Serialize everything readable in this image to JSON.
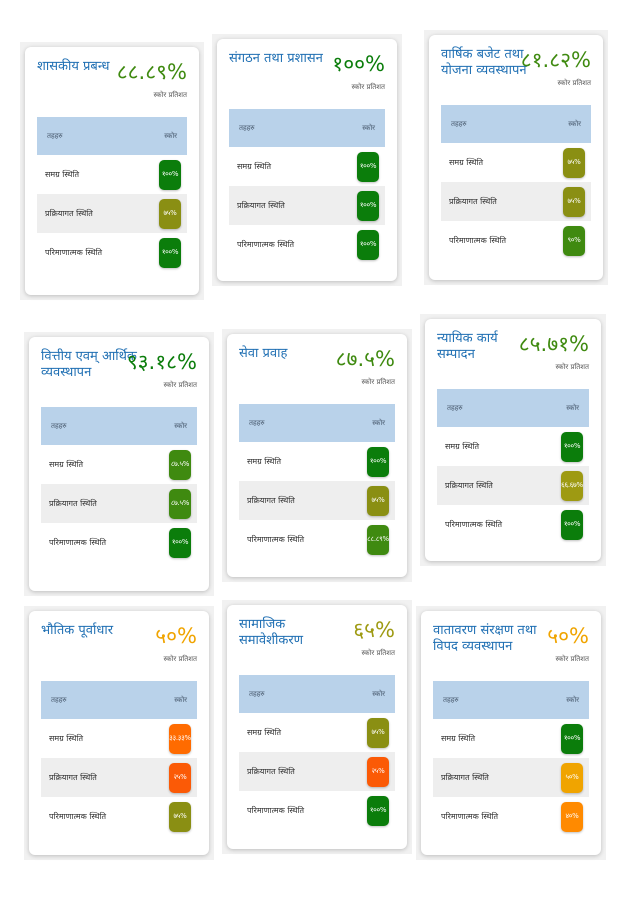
{
  "labels": {
    "score_percent": "स्कोर प्रतिशत",
    "col_area": "तहहरु",
    "col_score": "स्कोर"
  },
  "colors": {
    "good": "#0b7d0b",
    "medium_good": "#3f8a10",
    "olive": "#8a8f13",
    "olive_yellow": "#9e9a12",
    "warning": "#f0a400",
    "alert": "#ff6b00",
    "danger": "#fb5a06",
    "title_blue": "#1f6fb3",
    "table_header": "#b9d2ea"
  },
  "cards": [
    {
      "title": "शासकीय प्रबन्ध",
      "percent": "८८.८९%",
      "percent_color": "#3f8a10",
      "rows": [
        {
          "label": "समग्र स्थिति",
          "value": "१००%",
          "color": "#0b7d0b"
        },
        {
          "label": "प्रक्रियागत स्थिति",
          "value": "७५%",
          "color": "#8a8f13"
        },
        {
          "label": "परिमाणात्मक स्थिति",
          "value": "१००%",
          "color": "#0b7d0b"
        }
      ]
    },
    {
      "title": "संगठन तथा प्रशासन",
      "percent": "१००%",
      "percent_color": "#0b7d0b",
      "rows": [
        {
          "label": "समग्र स्थिति",
          "value": "१००%",
          "color": "#0b7d0b"
        },
        {
          "label": "प्रक्रियागत स्थिति",
          "value": "१००%",
          "color": "#0b7d0b"
        },
        {
          "label": "परिमाणात्मक स्थिति",
          "value": "१००%",
          "color": "#0b7d0b"
        }
      ]
    },
    {
      "title": "वार्षिक बजेट तथा योजना व्यवस्थापन",
      "percent": "८१.८२%",
      "percent_color": "#3f8a10",
      "rows": [
        {
          "label": "समग्र स्थिति",
          "value": "७५%",
          "color": "#8a8f13"
        },
        {
          "label": "प्रक्रियागत स्थिति",
          "value": "७५%",
          "color": "#8a8f13"
        },
        {
          "label": "परिमाणात्मक स्थिति",
          "value": "९०%",
          "color": "#3f8a10"
        }
      ]
    },
    {
      "title": "वित्तीय एवम् आर्थिक व्यवस्थापन",
      "percent": "९३.१८%",
      "percent_color": "#0b7d0b",
      "rows": [
        {
          "label": "समग्र स्थिति",
          "value": "८७.५%",
          "color": "#3f8a10"
        },
        {
          "label": "प्रक्रियागत स्थिति",
          "value": "८७.५%",
          "color": "#3f8a10"
        },
        {
          "label": "परिमाणात्मक स्थिति",
          "value": "१००%",
          "color": "#0b7d0b"
        }
      ]
    },
    {
      "title": "सेवा प्रवाह",
      "percent": "८७.५%",
      "percent_color": "#3f8a10",
      "rows": [
        {
          "label": "समग्र स्थिति",
          "value": "१००%",
          "color": "#0b7d0b"
        },
        {
          "label": "प्रक्रियागत स्थिति",
          "value": "७५%",
          "color": "#8a8f13"
        },
        {
          "label": "परिमाणात्मक स्थिति",
          "value": "८८.८९%",
          "color": "#3f8a10"
        }
      ]
    },
    {
      "title": "न्यायिक कार्य सम्पादन",
      "percent": "८५.७१%",
      "percent_color": "#3f8a10",
      "rows": [
        {
          "label": "समग्र स्थिति",
          "value": "१००%",
          "color": "#0b7d0b"
        },
        {
          "label": "प्रक्रियागत स्थिति",
          "value": "६६.६७%",
          "color": "#9e9a12"
        },
        {
          "label": "परिमाणात्मक स्थिति",
          "value": "१००%",
          "color": "#0b7d0b"
        }
      ]
    },
    {
      "title": "भौतिक पूर्वाधार",
      "percent": "५०%",
      "percent_color": "#f0a400",
      "rows": [
        {
          "label": "समग्र स्थिति",
          "value": "३३.३३%",
          "color": "#ff6b00"
        },
        {
          "label": "प्रक्रियागत स्थिति",
          "value": "२५%",
          "color": "#fb5a06"
        },
        {
          "label": "परिमाणात्मक स्थिति",
          "value": "७५%",
          "color": "#8a8f13"
        }
      ]
    },
    {
      "title": "सामाजिक समावेशीकरण",
      "percent": "६५%",
      "percent_color": "#9e9a12",
      "rows": [
        {
          "label": "समग्र स्थिति",
          "value": "७५%",
          "color": "#8a8f13"
        },
        {
          "label": "प्रक्रियागत स्थिति",
          "value": "२५%",
          "color": "#fb5a06"
        },
        {
          "label": "परिमाणात्मक स्थिति",
          "value": "१००%",
          "color": "#0b7d0b"
        }
      ]
    },
    {
      "title": "वातावरण संरक्षण तथा विपद व्यवस्थापन",
      "percent": "५०%",
      "percent_color": "#f0a400",
      "rows": [
        {
          "label": "समग्र स्थिति",
          "value": "१००%",
          "color": "#0b7d0b"
        },
        {
          "label": "प्रक्रियागत स्थिति",
          "value": "५०%",
          "color": "#f0a400"
        },
        {
          "label": "परिमाणात्मक स्थिति",
          "value": "४०%",
          "color": "#ff8a00"
        }
      ]
    }
  ]
}
